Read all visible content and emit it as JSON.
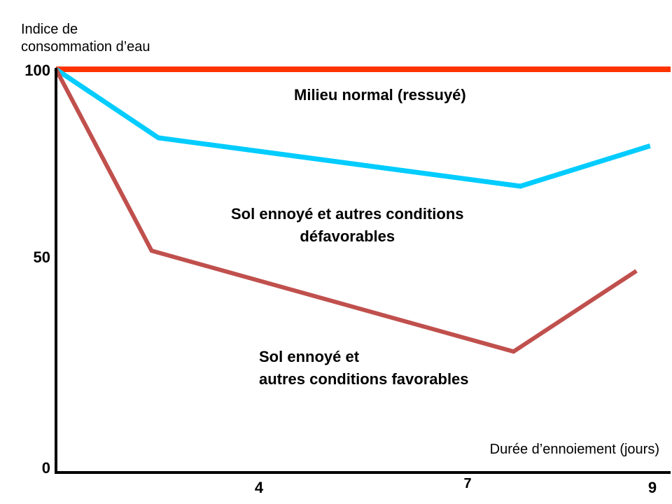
{
  "chart_data": {
    "type": "line",
    "ylabel": "Indice de\nconsommation d’eau",
    "xlabel": "Durée d’ennoiement (jours)",
    "yticks": [
      "100",
      "50",
      "0"
    ],
    "xticks": [
      "4",
      "7",
      "9"
    ],
    "ylim": [
      0,
      100
    ],
    "xlim": [
      0,
      9
    ],
    "grid": false,
    "series": [
      {
        "name": "Milieu normal (ressuyé)",
        "color": "#ff3300",
        "x": [
          0,
          9
        ],
        "y": [
          100,
          100
        ]
      },
      {
        "name": "Sol ennoyé  et autres conditions\ndéfavorables",
        "color": "#00ccff",
        "x": [
          0,
          1.5,
          6.8,
          8.7
        ],
        "y": [
          100,
          83,
          71,
          81
        ]
      },
      {
        "name": "Sol ennoyé et\nautres conditions favorables",
        "color": "#c0504d",
        "x": [
          0,
          1.4,
          6.7,
          8.5
        ],
        "y": [
          100,
          55,
          30,
          50
        ]
      }
    ]
  }
}
